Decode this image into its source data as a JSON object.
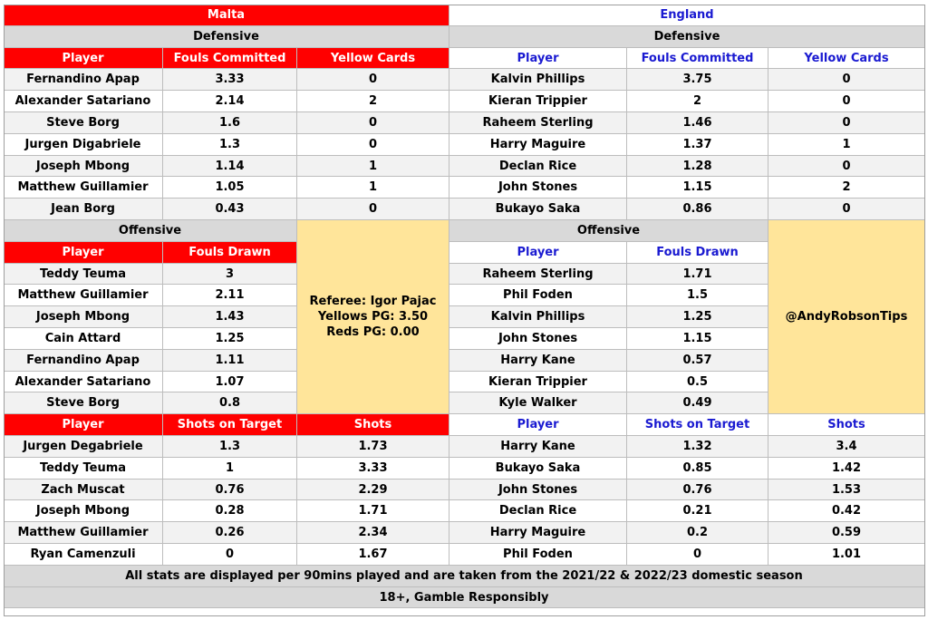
{
  "malta": {
    "team": "Malta",
    "defensive_title": "Defensive",
    "defensive_headers": [
      "Player",
      "Fouls Committed",
      "Yellow Cards"
    ],
    "defensive_rows": [
      [
        "Fernandino Apap",
        "3.33",
        "0"
      ],
      [
        "Alexander Satariano",
        "2.14",
        "2"
      ],
      [
        "Steve Borg",
        "1.6",
        "0"
      ],
      [
        "Jurgen Digabriele",
        "1.3",
        "0"
      ],
      [
        "Joseph Mbong",
        "1.14",
        "1"
      ],
      [
        "Matthew Guillamier",
        "1.05",
        "1"
      ],
      [
        "Jean Borg",
        "0.43",
        "0"
      ]
    ],
    "offensive_title": "Offensive",
    "offensive_headers": [
      "Player",
      "Fouls Drawn"
    ],
    "offensive_rows": [
      [
        "Teddy Teuma",
        "3"
      ],
      [
        "Matthew Guillamier",
        "2.11"
      ],
      [
        "Joseph Mbong",
        "1.43"
      ],
      [
        "Cain Attard",
        "1.25"
      ],
      [
        "Fernandino Apap",
        "1.11"
      ],
      [
        "Alexander Satariano",
        "1.07"
      ],
      [
        "Steve Borg",
        "0.8"
      ]
    ],
    "shots_headers": [
      "Player",
      "Shots on Target",
      "Shots"
    ],
    "shots_rows": [
      [
        "Jurgen Degabriele",
        "1.3",
        "1.73"
      ],
      [
        "Teddy Teuma",
        "1",
        "3.33"
      ],
      [
        "Zach Muscat",
        "0.76",
        "2.29"
      ],
      [
        "Joseph Mbong",
        "0.28",
        "1.71"
      ],
      [
        "Matthew Guillamier",
        "0.26",
        "2.34"
      ],
      [
        "Ryan Camenzuli",
        "0",
        "1.67"
      ]
    ]
  },
  "referee_box": {
    "referee": "Referee: Igor Pajac",
    "yellows": "Yellows PG: 3.50",
    "reds": "Reds PG: 0.00"
  },
  "england": {
    "team": "England",
    "defensive_title": "Defensive",
    "defensive_headers": [
      "Player",
      "Fouls Committed",
      "Yellow Cards"
    ],
    "defensive_rows": [
      [
        "Kalvin Phillips",
        "3.75",
        "0"
      ],
      [
        "Kieran Trippier",
        "2",
        "0"
      ],
      [
        "Raheem Sterling",
        "1.46",
        "0"
      ],
      [
        "Harry Maguire",
        "1.37",
        "1"
      ],
      [
        "Declan Rice",
        "1.28",
        "0"
      ],
      [
        "John Stones",
        "1.15",
        "2"
      ],
      [
        "Bukayo Saka",
        "0.86",
        "0"
      ]
    ],
    "offensive_title": "Offensive",
    "offensive_headers": [
      "Player",
      "Fouls Drawn"
    ],
    "offensive_rows": [
      [
        "Raheem Sterling",
        "1.71"
      ],
      [
        "Phil Foden",
        "1.5"
      ],
      [
        "Kalvin Phillips",
        "1.25"
      ],
      [
        "John Stones",
        "1.15"
      ],
      [
        "Harry Kane",
        "0.57"
      ],
      [
        "Kieran Trippier",
        "0.5"
      ],
      [
        "Kyle Walker",
        "0.49"
      ]
    ],
    "shots_headers": [
      "Player",
      "Shots on Target",
      "Shots"
    ],
    "shots_rows": [
      [
        "Harry Kane",
        "1.32",
        "3.4"
      ],
      [
        "Bukayo Saka",
        "0.85",
        "1.42"
      ],
      [
        "John Stones",
        "0.76",
        "1.53"
      ],
      [
        "Declan Rice",
        "0.21",
        "0.42"
      ],
      [
        "Harry Maguire",
        "0.2",
        "0.59"
      ],
      [
        "Phil Foden",
        "0",
        "1.01"
      ]
    ]
  },
  "handle_box": {
    "handle": "@AndyRobsonTips"
  },
  "footer": {
    "note": "All stats are displayed per 90mins played and are taken from the 2021/22 & 2022/23 domestic season",
    "disclaimer": "18+, Gamble Responsibly"
  }
}
